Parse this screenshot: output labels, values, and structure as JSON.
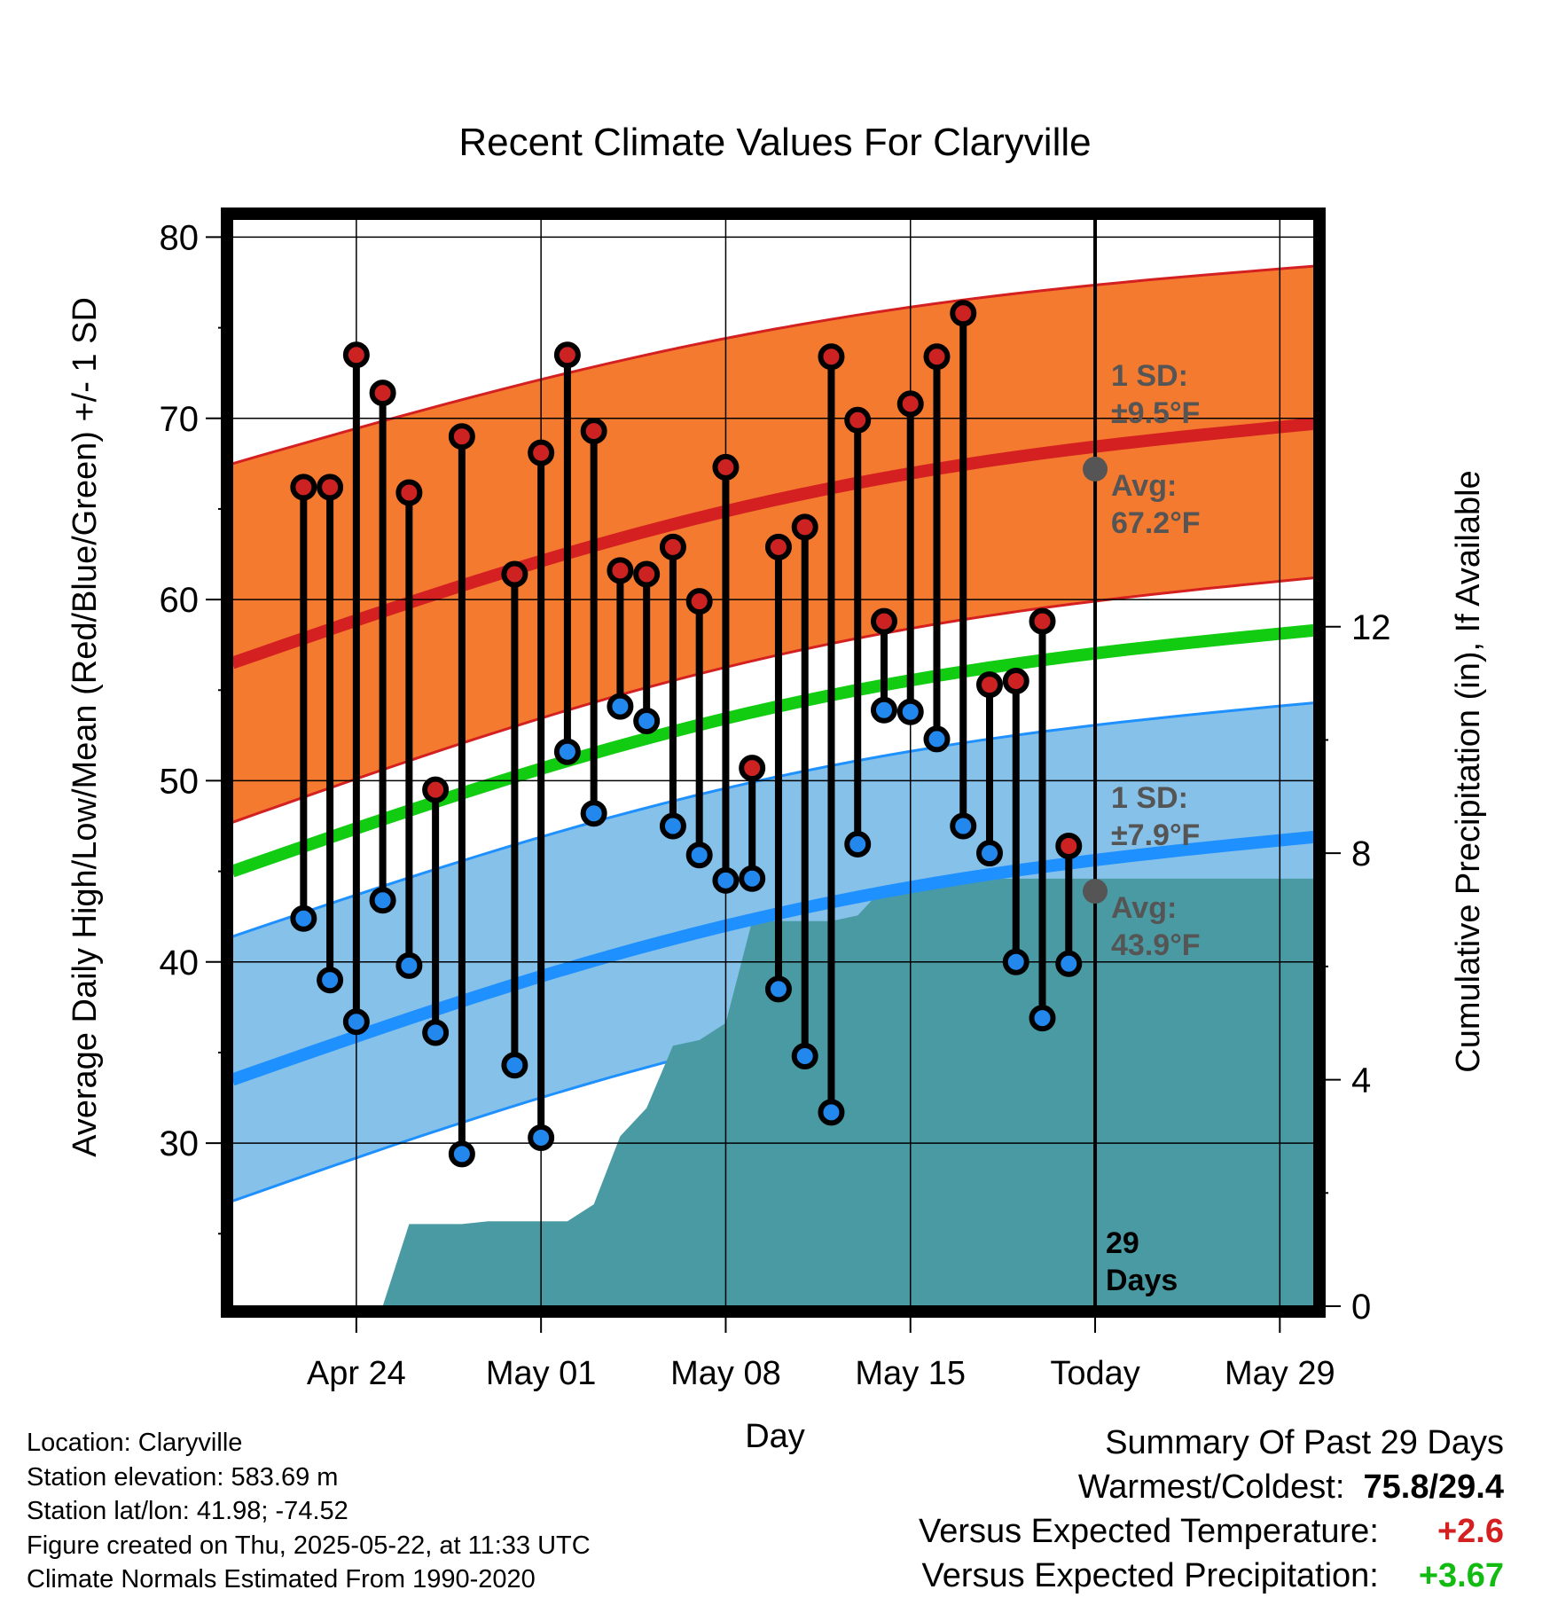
{
  "chart_data": {
    "type": "line",
    "title": "Recent Climate Values For Claryville",
    "xlabel": "Day",
    "ylabel": "Average Daily High/Low/Mean (Red/Blue/Green) +/- 1 SD",
    "y2label": "Cumulative Precipitation (in), If Available",
    "ylim": [
      21,
      81
    ],
    "y2lim": [
      0,
      19.2
    ],
    "x_range_days": [
      -2.7,
      38.3
    ],
    "x_ticks": [
      {
        "day": 2,
        "label": "Apr 24"
      },
      {
        "day": 9,
        "label": "May 01"
      },
      {
        "day": 16,
        "label": "May 08"
      },
      {
        "day": 23,
        "label": "May 15"
      },
      {
        "day": 30,
        "label": "Today"
      },
      {
        "day": 37,
        "label": "May 29"
      }
    ],
    "y_ticks": [
      30,
      40,
      50,
      60,
      70,
      80
    ],
    "y2_ticks": [
      0,
      4,
      8,
      12
    ],
    "grid": true,
    "today_day": 30,
    "days_label": "29\nDays",
    "normals": {
      "days": [
        -2.7,
        38.3
      ],
      "high_avg": [
        56.5,
        69.7
      ],
      "high_upper": [
        67.5,
        78.4
      ],
      "high_lower": [
        47.7,
        61.2
      ],
      "low_avg": [
        33.5,
        46.9
      ],
      "low_upper": [
        41.4,
        54.3
      ],
      "low_lower": [
        26.8,
        40.2
      ],
      "mean_avg": [
        45.0,
        58.3
      ]
    },
    "annotations": {
      "high": {
        "sd_label": "1 SD:",
        "sd_value": "±9.5°F",
        "avg_label": "Avg:",
        "avg_value": "67.2°F",
        "avg": 67.2
      },
      "low": {
        "sd_label": "1 SD:",
        "sd_value": "±7.9°F",
        "avg_label": "Avg:",
        "avg_value": "43.9°F",
        "avg": 43.9
      }
    },
    "series": [
      {
        "name": "High",
        "color": "#cc2222",
        "values": [
          66.2,
          66.2,
          73.5,
          71.4,
          65.9,
          49.5,
          69.0,
          null,
          61.4,
          68.1,
          73.5,
          69.3,
          61.6,
          61.4,
          62.9,
          59.9,
          67.3,
          50.7,
          62.9,
          64.0,
          73.4,
          69.9,
          58.8,
          70.8,
          73.4,
          75.8,
          55.3,
          55.5,
          58.8,
          46.4
        ]
      },
      {
        "name": "Low",
        "color": "#2288ee",
        "values": [
          42.4,
          39.0,
          36.7,
          43.4,
          39.8,
          36.1,
          29.4,
          null,
          34.3,
          30.3,
          51.6,
          48.2,
          54.1,
          53.3,
          47.5,
          45.9,
          44.5,
          44.6,
          38.5,
          34.8,
          31.7,
          46.5,
          53.9,
          53.8,
          52.3,
          47.5,
          46.0,
          40.0,
          36.9,
          39.9
        ]
      }
    ],
    "precip": {
      "days": [
        0,
        1,
        2,
        3,
        4,
        5,
        6,
        7,
        8,
        9,
        10,
        11,
        12,
        13,
        14,
        15,
        16,
        17,
        18,
        19,
        20,
        21,
        22,
        23,
        24,
        25,
        26,
        27,
        28,
        29,
        30
      ],
      "values": [
        0,
        0,
        0,
        0,
        1.45,
        1.45,
        1.45,
        1.5,
        1.5,
        1.5,
        1.5,
        1.8,
        3.0,
        3.5,
        4.6,
        4.7,
        5.0,
        6.8,
        6.8,
        6.8,
        6.8,
        6.9,
        7.4,
        7.4,
        7.4,
        7.5,
        7.55,
        7.55,
        7.55,
        7.55,
        7.55
      ]
    }
  },
  "info": {
    "location": "Location: Claryville",
    "elevation": "Station elevation: 583.69 m",
    "latlon": "Station lat/lon: 41.98; -74.52",
    "created": "Figure created on Thu, 2025-05-22, at 11:33 UTC",
    "normals": "Climate Normals Estimated From 1990-2020"
  },
  "summary": {
    "title": "Summary Of Past 29 Days",
    "warmest_label": "Warmest/Coldest:",
    "warmest_value": "75.8/29.4",
    "temp_label": "Versus Expected Temperature:",
    "temp_value": "+2.6",
    "precip_label": "Versus Expected Precipitation:",
    "precip_value": "+3.67"
  },
  "colors": {
    "high_band": "#f47a30",
    "high_line": "#d42020",
    "low_band": "#85c1e9",
    "low_line": "#1e90ff",
    "mean_line": "#11cc11",
    "precip_fill": "#4a9aa3",
    "temp_positive": "#d42020",
    "precip_positive": "#11bb11",
    "annotation_text": "#555555",
    "today_dot": "#555555"
  }
}
